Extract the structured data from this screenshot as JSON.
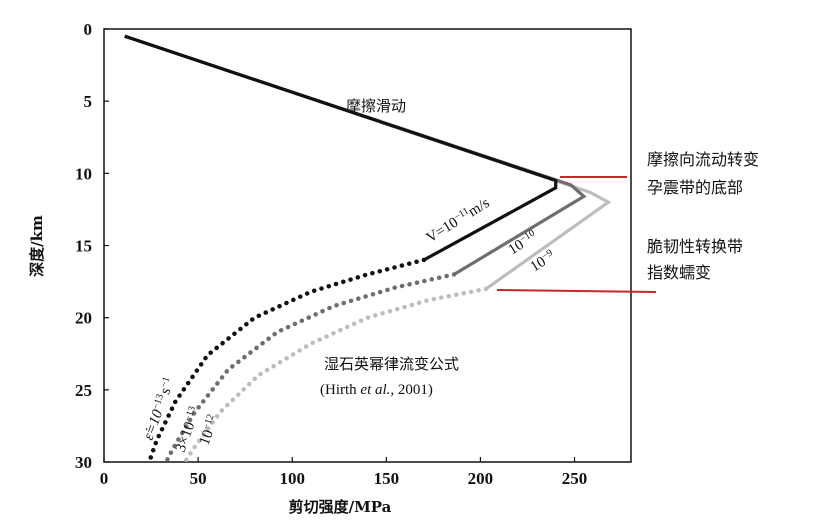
{
  "chart_data": {
    "type": "line",
    "xlabel": "剪切强度/MPa",
    "ylabel": "深度/km",
    "xlim": [
      0,
      280
    ],
    "ylim": [
      0,
      30
    ],
    "y_reversed": true,
    "xticks": [
      0,
      50,
      100,
      150,
      200,
      250
    ],
    "yticks": [
      0,
      5,
      10,
      15,
      20,
      25,
      30
    ],
    "grid": false,
    "series": [
      {
        "name": "V=10⁻¹¹m/s",
        "color": "#111111",
        "solid": [
          [
            11,
            0.5
          ],
          [
            240,
            10.5
          ],
          [
            240,
            11.0
          ],
          [
            170,
            16.0
          ]
        ],
        "dotted": [
          [
            170,
            16.0
          ],
          [
            140,
            17.0
          ],
          [
            110,
            18.2
          ],
          [
            80,
            20.0
          ],
          [
            55,
            22.6
          ],
          [
            38,
            25.8
          ],
          [
            28,
            28.5
          ],
          [
            24,
            30.0
          ]
        ]
      },
      {
        "name": "10⁻¹⁰",
        "color": "#6e6e6e",
        "solid": [
          [
            11,
            0.5
          ],
          [
            248,
            10.8
          ],
          [
            255,
            11.6
          ],
          [
            186,
            17.0
          ]
        ],
        "dotted": [
          [
            186,
            17.0
          ],
          [
            155,
            17.9
          ],
          [
            122,
            19.2
          ],
          [
            92,
            21.0
          ],
          [
            66,
            23.6
          ],
          [
            48,
            26.6
          ],
          [
            37,
            29.0
          ],
          [
            33,
            30.0
          ]
        ]
      },
      {
        "name": "10⁻⁹",
        "color": "#bdbdbd",
        "solid": [
          [
            11,
            0.5
          ],
          [
            258,
            11.3
          ],
          [
            268,
            12.0
          ],
          [
            203,
            18.0
          ]
        ],
        "dotted": [
          [
            203,
            18.0
          ],
          [
            172,
            18.8
          ],
          [
            140,
            20.0
          ],
          [
            110,
            21.8
          ],
          [
            82,
            24.0
          ],
          [
            62,
            26.5
          ],
          [
            48,
            29.0
          ],
          [
            43,
            30.0
          ]
        ]
      }
    ],
    "annotations": {
      "friction": "摩擦滑动",
      "v_label": "V=10",
      "v_exp": "−11",
      "v_unit": "m/s",
      "s10_base": "10",
      "s10_exp": "−10",
      "s9_base": "10",
      "s9_exp": "−9",
      "law_line1": "湿石英幂律流变公式",
      "law_line2_pre": "(Hirth ",
      "law_line2_em": "et al.",
      "law_line2_post": ", 2001)",
      "rate1_base": "ε̇=10",
      "rate1_exp": "−13",
      "rate1_unit": "s",
      "rate1_unit_exp": "−1",
      "rate2_base": "3×10",
      "rate2_exp": "−13",
      "rate3_base": "10",
      "rate3_exp": "−12"
    },
    "side_labels": {
      "line1": "摩擦向流动转变",
      "line2": "孕震带的底部",
      "line3": "脆韧性转换带",
      "line4": "指数蠕变"
    },
    "marker_color": "#c62828"
  }
}
